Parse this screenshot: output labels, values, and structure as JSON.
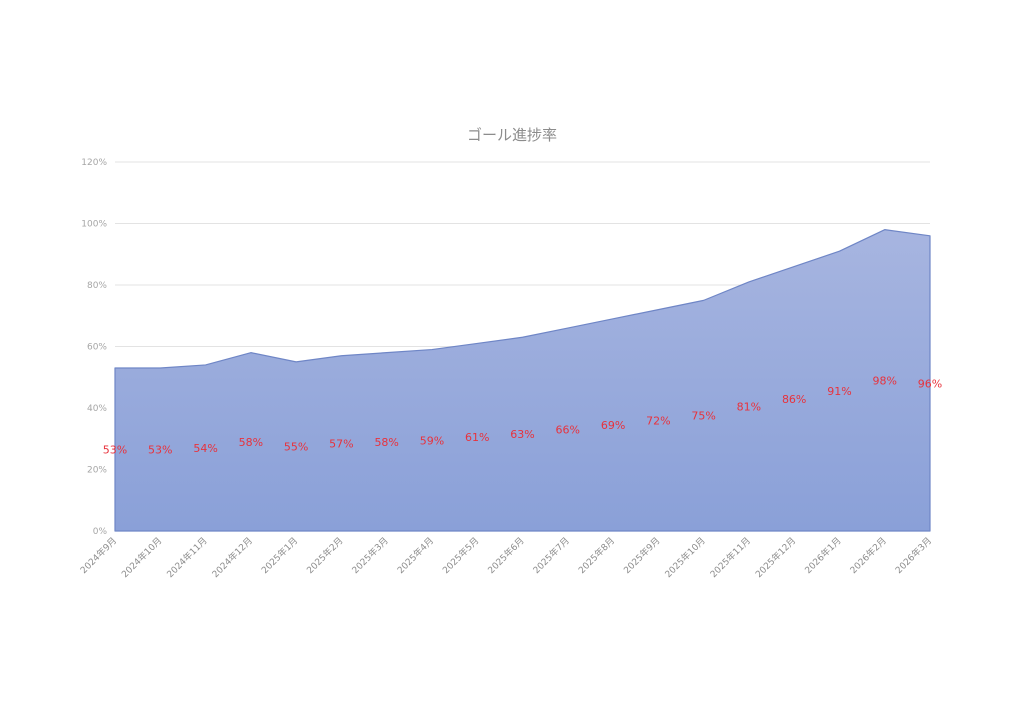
{
  "chart_data": {
    "type": "area",
    "title": "ゴール進捗率",
    "x": [
      "2024年9月",
      "2024年10月",
      "2024年11月",
      "2024年12月",
      "2025年1月",
      "2025年2月",
      "2025年3月",
      "2025年4月",
      "2025年5月",
      "2025年6月",
      "2025年7月",
      "2025年8月",
      "2025年9月",
      "2025年10月",
      "2025年11月",
      "2025年12月",
      "2026年1月",
      "2026年2月",
      "2026年3月"
    ],
    "values": [
      53,
      53,
      54,
      58,
      55,
      57,
      58,
      59,
      61,
      63,
      66,
      69,
      72,
      75,
      81,
      86,
      91,
      98,
      96
    ],
    "data_labels": [
      "53%",
      "53%",
      "54%",
      "58%",
      "55%",
      "57%",
      "58%",
      "59%",
      "61%",
      "63%",
      "66%",
      "69%",
      "72%",
      "75%",
      "81%",
      "86%",
      "91%",
      "98%",
      "96%"
    ],
    "ylim": [
      0,
      120
    ],
    "yticks": [
      0,
      20,
      40,
      60,
      80,
      100,
      120
    ],
    "ytick_labels": [
      "0%",
      "20%",
      "40%",
      "60%",
      "80%",
      "100%",
      "120%"
    ],
    "grid": true,
    "legend": "none",
    "colors": {
      "fill_top": "#a7b5e0",
      "fill_bottom": "#8aa0d8",
      "line": "#6f86c6",
      "data_label": "#e8323c"
    }
  }
}
